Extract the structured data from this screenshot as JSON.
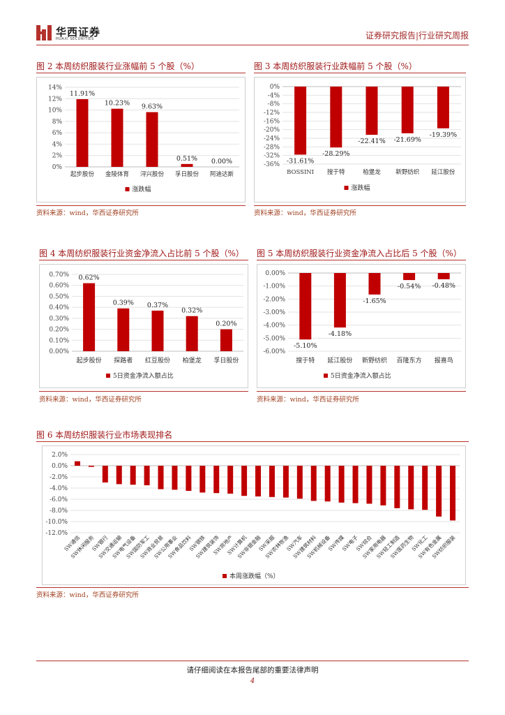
{
  "header": {
    "logo_cn": "华西证券",
    "logo_en": "HUAXI SECURITIES",
    "report_type": "证券研究报告|行业研究周报",
    "brand_color": "#b5322c"
  },
  "figures": {
    "fig2": {
      "title": "图 2 本周纺织服装行业涨幅前 5 个股（%）",
      "source": "资料来源：wind，华西证券研究所"
    },
    "fig3": {
      "title": "图 3 本周纺织服装行业跌幅前 5 个股（%）",
      "source": "资料来源：wind，华西证券研究所"
    },
    "fig4": {
      "title": "图 4 本周纺织服装行业资金净流入占比前 5 个股（%）",
      "source": "资料来源：wind，华西证券研究所"
    },
    "fig5": {
      "title": "图 5 本周纺织服装行业资金净流入占比后 5 个股（%）",
      "source": "资料来源：wind，华西证券研究所"
    },
    "fig6": {
      "title": "图 6 本周纺织服装行业市场表现排名",
      "source": "资料来源：wind，华西证券研究所"
    }
  },
  "footer": {
    "disclaimer": "请仔细阅读在本报告尾部的重要法律声明",
    "page_number": "4"
  },
  "chart_data": [
    {
      "id": "fig2",
      "type": "bar",
      "bar_color": "#c00000",
      "categories": [
        "起步股份",
        "金陵体育",
        "浔兴股份",
        "孚日股份",
        "阿迪达斯"
      ],
      "values": [
        11.91,
        10.23,
        9.63,
        0.51,
        0.0
      ],
      "labels": [
        "11.91%",
        "10.23%",
        "9.63%",
        "0.51%",
        "0.00%"
      ],
      "ylim": [
        0,
        14
      ],
      "ticks": [
        "14%",
        "12%",
        "10%",
        "8%",
        "6%",
        "4%",
        "2%",
        "0%"
      ],
      "legend": "涨跌幅"
    },
    {
      "id": "fig3",
      "type": "bar",
      "bar_color": "#c00000",
      "categories": [
        "BOSSINI",
        "搜于特",
        "柏堡龙",
        "新野纺织",
        "延江股份"
      ],
      "values": [
        -31.61,
        -28.29,
        -22.41,
        -21.69,
        -19.39
      ],
      "labels": [
        "-31.61%",
        "-28.29%",
        "-22.41%",
        "-21.69%",
        "-19.39%"
      ],
      "ylim": [
        -36,
        0
      ],
      "ticks": [
        "0%",
        "-4%",
        "-8%",
        "-12%",
        "-16%",
        "-20%",
        "-24%",
        "-28%",
        "-32%",
        "-36%"
      ],
      "legend": "涨跌幅"
    },
    {
      "id": "fig4",
      "type": "bar",
      "bar_color": "#c00000",
      "categories": [
        "起步股份",
        "探路者",
        "红豆股份",
        "柏堡龙",
        "孚日股份"
      ],
      "values": [
        0.62,
        0.39,
        0.37,
        0.32,
        0.2
      ],
      "labels": [
        "0.62%",
        "0.39%",
        "0.37%",
        "0.32%",
        "0.20%"
      ],
      "ylim": [
        0,
        0.7
      ],
      "ticks": [
        "0.70%",
        "0.60%",
        "0.50%",
        "0.40%",
        "0.30%",
        "0.20%",
        "0.10%",
        "0.00%"
      ],
      "legend": "5日资金净流入额占比"
    },
    {
      "id": "fig5",
      "type": "bar",
      "bar_color": "#c00000",
      "categories": [
        "搜于特",
        "延江股份",
        "新野纺织",
        "百隆东方",
        "报喜鸟"
      ],
      "values": [
        -5.1,
        -4.18,
        -1.65,
        -0.54,
        -0.48
      ],
      "labels": [
        "-5.10%",
        "-4.18%",
        "-1.65%",
        "-0.54%",
        "-0.48%"
      ],
      "ylim": [
        -6,
        0
      ],
      "ticks": [
        "0.00%",
        "-1.00%",
        "-2.00%",
        "-3.00%",
        "-4.00%",
        "-5.00%",
        "-6.00%"
      ],
      "legend": "5日资金净流入额占比"
    },
    {
      "id": "fig6",
      "type": "bar",
      "bar_color": "#c00000",
      "categories": [
        "SW通信",
        "SW休闲服务",
        "SW银行",
        "SW交通运输",
        "SW电气设备",
        "SW国防军工",
        "SW商业贸易",
        "SW公用事业",
        "SW食品饮料",
        "SW钢铁",
        "SW建筑装饰",
        "SW房地产",
        "SW计算机",
        "SW非银金融",
        "SW采掘",
        "SW农林牧渔",
        "SW汽车",
        "SW建筑材料",
        "SW机械设备",
        "SW传媒",
        "SW电子",
        "SW综合",
        "SW家用电器",
        "SW轻工制造",
        "SW医药生物",
        "SW化工",
        "SW有色金属",
        "SW纺织服装"
      ],
      "values": [
        0.8,
        -0.2,
        -3.0,
        -3.3,
        -3.4,
        -3.5,
        -4.2,
        -4.3,
        -4.5,
        -4.8,
        -4.9,
        -5.0,
        -5.4,
        -5.5,
        -5.6,
        -5.7,
        -5.9,
        -6.3,
        -6.4,
        -6.6,
        -6.7,
        -6.8,
        -7.1,
        -7.6,
        -7.8,
        -7.9,
        -9.1,
        -9.8
      ],
      "ylim": [
        -12,
        2
      ],
      "ticks": [
        "2.0%",
        "0.0%",
        "-2.0%",
        "-4.0%",
        "-6.0%",
        "-8.0%",
        "-10.0%",
        "-12.0%"
      ],
      "legend": "本周涨跌幅（%）"
    }
  ]
}
